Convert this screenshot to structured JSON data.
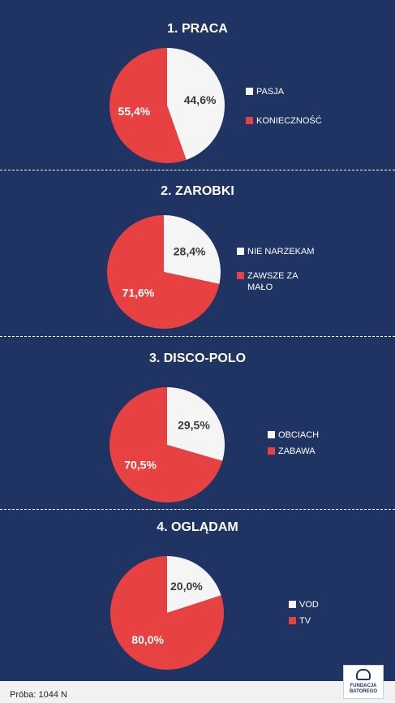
{
  "chart_data": [
    {
      "type": "pie",
      "title": "1. PRACA",
      "slices": [
        {
          "label": "PASJA",
          "value": 44.6,
          "display": "44,6%",
          "color": "#f5f5f5"
        },
        {
          "label": "KONIECZNOŚĆ",
          "value": 55.4,
          "display": "55,4%",
          "color": "#e84142"
        }
      ]
    },
    {
      "type": "pie",
      "title": "2. ZAROBKI",
      "slices": [
        {
          "label": "NIE NARZEKAM",
          "value": 28.4,
          "display": "28,4%",
          "color": "#f5f5f5"
        },
        {
          "label": "ZAWSZE ZA MAŁO",
          "value": 71.6,
          "display": "71,6%",
          "color": "#e84142"
        }
      ]
    },
    {
      "type": "pie",
      "title": "3. DISCO-POLO",
      "slices": [
        {
          "label": "OBCIACH",
          "value": 29.5,
          "display": "29,5%",
          "color": "#f5f5f5"
        },
        {
          "label": "ZABAWA",
          "value": 70.5,
          "display": "70,5%",
          "color": "#e84142"
        }
      ]
    },
    {
      "type": "pie",
      "title": "4. OGLĄDAM",
      "slices": [
        {
          "label": "VOD",
          "value": 20.0,
          "display": "20,0%",
          "color": "#f5f5f5"
        },
        {
          "label": "TV",
          "value": 80.0,
          "display": "80,0%",
          "color": "#e84142"
        }
      ]
    }
  ],
  "footer": {
    "sample": "Próba: 1044 N",
    "logo_line1": "FUNDACJA",
    "logo_line2": "BATOREGO"
  }
}
